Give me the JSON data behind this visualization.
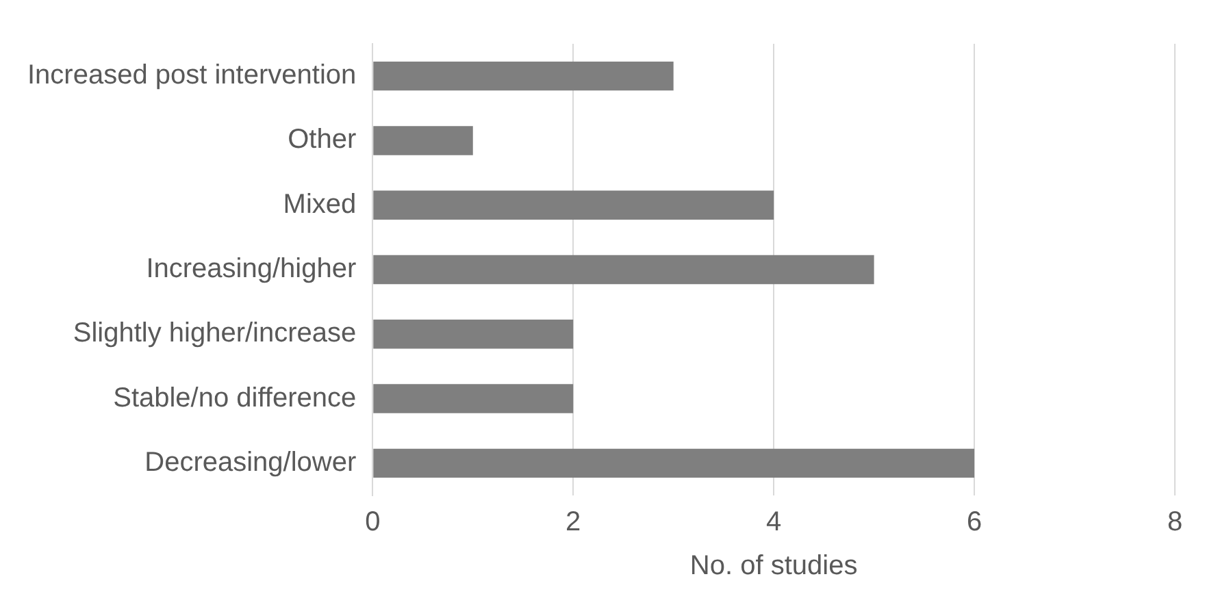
{
  "chart_data": {
    "type": "bar",
    "orientation": "horizontal",
    "xlabel": "No. of studies",
    "categories": [
      "Increased post intervention",
      "Other",
      "Mixed",
      "Increasing/higher",
      "Slightly higher/increase",
      "Stable/no difference",
      "Decreasing/lower"
    ],
    "values": [
      3,
      1,
      4,
      5,
      2,
      2,
      6
    ],
    "color": "#7f7f7f",
    "xlim": [
      0,
      8
    ],
    "xticks": [
      0,
      2,
      4,
      6,
      8
    ],
    "grid": "x",
    "legend": false
  }
}
